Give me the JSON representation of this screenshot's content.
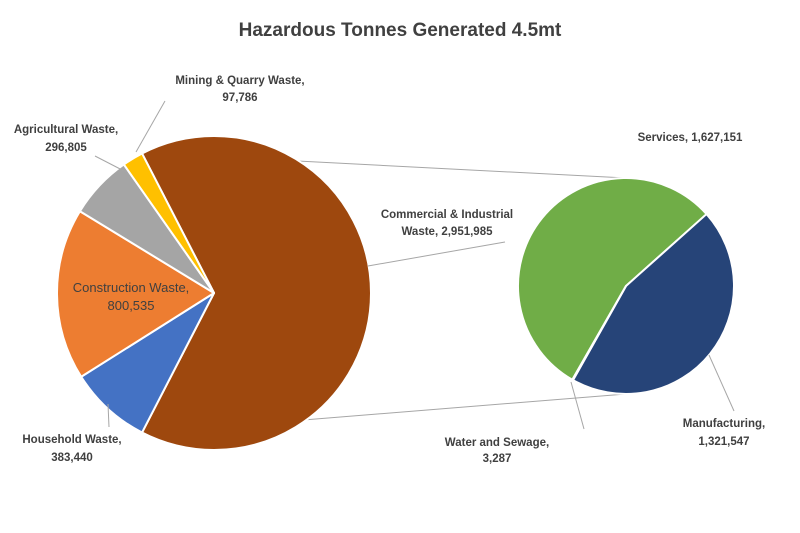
{
  "title": "Hazardous Tonnes Generated 4.5mt",
  "labels": {
    "title": "Hazardous Tonnes Generated 4.5mt",
    "mining": {
      "line1": "Mining & Quarry Waste,",
      "line2": "97,786"
    },
    "agricultural": {
      "line1": "Agricultural Waste,",
      "line2": "296,805"
    },
    "commercial": {
      "line1": "Commercial & Industrial",
      "line2": "Waste, 2,951,985"
    },
    "construction": {
      "line1": "Construction Waste,",
      "line2": "800,535"
    },
    "household": {
      "line1": "Household Waste,",
      "line2": "383,440"
    },
    "services": {
      "line1": "Services, 1,627,151"
    },
    "manufacturing": {
      "line1": "Manufacturing,",
      "line2": "1,321,547"
    },
    "water": {
      "line1": "Water and Sewage,",
      "line2": "3,287"
    }
  },
  "colors": {
    "commercial_industrial": "#9E480E",
    "household": "#4472C4",
    "construction": "#ED7D31",
    "agricultural": "#A5A5A5",
    "mining": "#FFC000",
    "services": "#70AD47",
    "manufacturing": "#264478",
    "water_sewage": "#8C8C8C",
    "label_text": "#404040",
    "leader_lines": "#A6A6A6",
    "background": "#FFFFFF"
  },
  "chart_data": [
    {
      "type": "pie",
      "role": "main-pie",
      "title": "Hazardous Tonnes Generated 4.5mt",
      "units": "tonnes",
      "total": 4530551,
      "categories": [
        "Commercial & Industrial Waste",
        "Household Waste",
        "Construction Waste",
        "Agricultural Waste",
        "Mining & Quarry Waste"
      ],
      "values": [
        2951985,
        383440,
        800535,
        296805,
        97786
      ],
      "colors": [
        "#9E480E",
        "#4472C4",
        "#ED7D31",
        "#A5A5A5",
        "#FFC000"
      ],
      "start_angle_deg": -27.28,
      "direction": "clockwise",
      "legend": false,
      "data_labels": "category and value"
    },
    {
      "type": "pie",
      "role": "secondary-pie (breakdown of Commercial & Industrial Waste)",
      "units": "tonnes",
      "total": 2951985,
      "categories": [
        "Services",
        "Manufacturing",
        "Water and Sewage"
      ],
      "values": [
        1627151,
        1321547,
        3287
      ],
      "colors": [
        "#70AD47",
        "#264478",
        "#8C8C8C"
      ],
      "start_angle_deg": 209.8,
      "direction": "clockwise",
      "legend": false,
      "data_labels": "category and value"
    }
  ]
}
